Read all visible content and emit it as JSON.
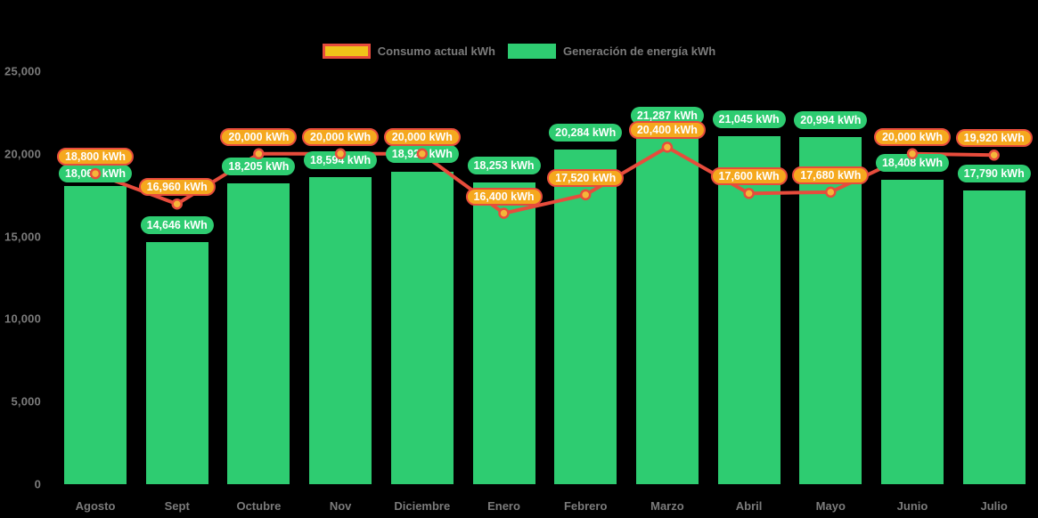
{
  "legend": [
    {
      "label": "Consumo actual kWh"
    },
    {
      "label": "Generación de energía kWh"
    }
  ],
  "colors": {
    "background": "#000000",
    "axis_text": "#7B7B7B",
    "bar_green": "#2ECC71",
    "line_red": "#E74C3C",
    "pill_green_bg": "#2ECC71",
    "pill_orange_bg": "#F5A81E",
    "pill_border_red": "#E74C3C",
    "pill_text": "#FFFFFF",
    "marker_fill": "#F4B63A",
    "legend_consumption_fill": "#EFC319",
    "legend_consumption_border": "#E74C3C",
    "legend_generation_fill": "#2ECC71"
  },
  "chart_data": {
    "type": "bar",
    "subtype": "bars-with-line-overlay",
    "categories": [
      "Agosto",
      "Sept",
      "Octubre",
      "Nov",
      "Diciembre",
      "Enero",
      "Febrero",
      "Marzo",
      "Abril",
      "Mayo",
      "Junio",
      "Julio"
    ],
    "series": [
      {
        "name": "Consumo actual kWh",
        "type": "line",
        "color": "#E74C3C",
        "values": [
          18800,
          16960,
          20000,
          20000,
          20000,
          16400,
          17520,
          20400,
          17600,
          17680,
          20000,
          19920
        ]
      },
      {
        "name": "Generación de energía kWh",
        "type": "bar",
        "color": "#2ECC71",
        "values": [
          18069,
          14646,
          18205,
          18594,
          18928,
          18253,
          20284,
          21287,
          21045,
          20994,
          18408,
          17790
        ]
      }
    ],
    "unit": "kWh",
    "data_label_suffix": " kWh",
    "ylim": [
      0,
      25000
    ],
    "yticks": [
      0,
      5000,
      10000,
      15000,
      20000,
      25000
    ],
    "ytick_labels": [
      "0",
      "5,000",
      "10,000",
      "15,000",
      "20,000",
      "25,000"
    ],
    "grid": false,
    "legend_position": "top"
  }
}
